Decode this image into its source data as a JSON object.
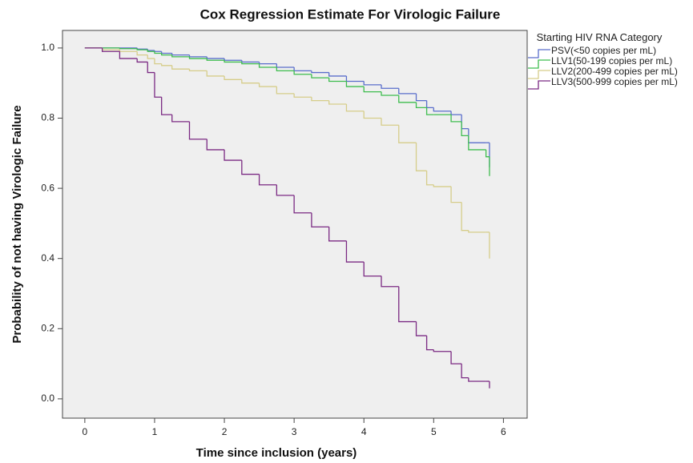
{
  "chart_data": {
    "type": "step",
    "title": "Cox Regression Estimate For Virologic Failure",
    "x_label": "Time since inclusion (years)",
    "y_label": "Probability of not having Virologic Failure",
    "legend_title": "Starting HIV RNA Category",
    "legend": "right",
    "background": "#efefef",
    "xlim": [
      -0.32,
      6.34
    ],
    "ylim": [
      -0.055,
      1.05
    ],
    "xticks": [
      0,
      1,
      2,
      3,
      4,
      5,
      6
    ],
    "yticks": [
      {
        "value": 0,
        "label": "0.0"
      },
      0.2,
      0.4,
      0.6,
      0.8,
      {
        "value": 1,
        "label": "1.0"
      }
    ],
    "x": [
      0,
      0.25,
      0.5,
      0.75,
      0.9,
      1,
      1.1,
      1.25,
      1.5,
      1.75,
      2,
      2.25,
      2.5,
      2.75,
      3,
      3.25,
      3.5,
      3.75,
      4,
      4.25,
      4.5,
      4.75,
      4.9,
      5,
      5.25,
      5.4,
      5.5,
      5.75,
      5.8
    ],
    "series": [
      {
        "name": "PSV(<50 copies per mL)",
        "color": "#5a6ecb",
        "values": [
          1,
          1,
          1,
          0.997,
          0.993,
          0.99,
          0.985,
          0.98,
          0.975,
          0.97,
          0.965,
          0.96,
          0.955,
          0.945,
          0.935,
          0.93,
          0.92,
          0.905,
          0.895,
          0.885,
          0.87,
          0.85,
          0.83,
          0.82,
          0.81,
          0.77,
          0.73,
          0.73,
          0.66
        ]
      },
      {
        "name": "LLV1(50-199 copies per mL)",
        "color": "#3fbd4f",
        "values": [
          1,
          1,
          0.998,
          0.995,
          0.99,
          0.985,
          0.98,
          0.975,
          0.97,
          0.965,
          0.96,
          0.955,
          0.945,
          0.935,
          0.925,
          0.915,
          0.905,
          0.89,
          0.875,
          0.865,
          0.845,
          0.83,
          0.81,
          0.81,
          0.79,
          0.75,
          0.71,
          0.69,
          0.635
        ]
      },
      {
        "name": "LLV2(200-499 copies per mL)",
        "color": "#d6cd8a",
        "values": [
          1,
          0.995,
          0.99,
          0.98,
          0.97,
          0.955,
          0.95,
          0.94,
          0.935,
          0.92,
          0.91,
          0.9,
          0.89,
          0.87,
          0.86,
          0.85,
          0.84,
          0.82,
          0.8,
          0.78,
          0.73,
          0.65,
          0.61,
          0.605,
          0.56,
          0.48,
          0.475,
          0.475,
          0.4
        ]
      },
      {
        "name": "LLV3(500-999 copies per mL)",
        "color": "#7b2a83",
        "values": [
          1,
          0.99,
          0.97,
          0.96,
          0.93,
          0.86,
          0.81,
          0.79,
          0.74,
          0.71,
          0.68,
          0.64,
          0.61,
          0.58,
          0.53,
          0.49,
          0.45,
          0.39,
          0.35,
          0.32,
          0.22,
          0.18,
          0.14,
          0.135,
          0.1,
          0.06,
          0.05,
          0.05,
          0.03
        ]
      }
    ]
  }
}
